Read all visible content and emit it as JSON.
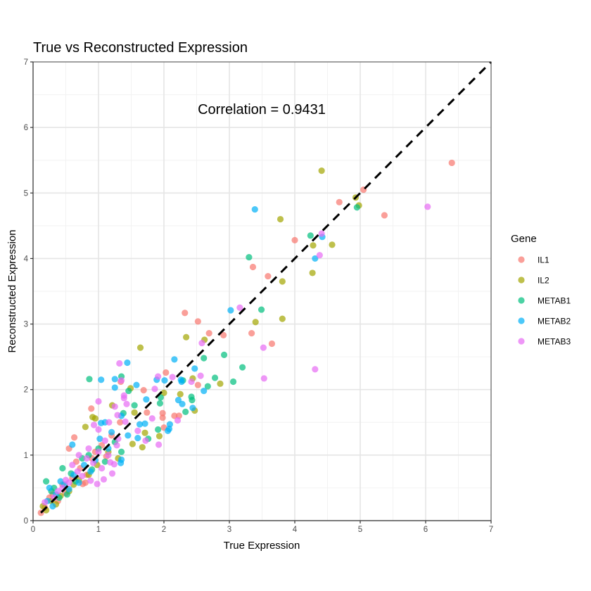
{
  "chart_data": {
    "type": "scatter",
    "title": "True vs Reconstructed Expression",
    "xlabel": "True Expression",
    "ylabel": "Reconstructed Expression",
    "xlim": [
      0,
      7
    ],
    "ylim": [
      0,
      7
    ],
    "x_ticks": [
      "0",
      "1",
      "2",
      "3",
      "4",
      "5",
      "6",
      "7"
    ],
    "y_ticks": [
      "0",
      "1",
      "2",
      "3",
      "4",
      "5",
      "6",
      "7"
    ],
    "grid": true,
    "annotation": "Correlation = 0.9431",
    "reference_line": {
      "type": "identity",
      "style": "dashed",
      "color": "#000000"
    },
    "legend": {
      "title": "Gene",
      "placement": "right"
    },
    "series": [
      {
        "name": "IL1",
        "color": "#F8766D",
        "points": [
          [
            6.4,
            5.46
          ],
          [
            5.05,
            5.05
          ],
          [
            4.68,
            4.86
          ],
          [
            5.37,
            4.66
          ],
          [
            4.0,
            4.28
          ],
          [
            3.36,
            3.87
          ],
          [
            3.59,
            3.73
          ],
          [
            2.32,
            3.17
          ],
          [
            2.52,
            3.04
          ],
          [
            2.69,
            2.86
          ],
          [
            2.91,
            2.83
          ],
          [
            3.34,
            2.86
          ],
          [
            3.65,
            2.7
          ],
          [
            2.03,
            2.26
          ],
          [
            2.52,
            2.07
          ],
          [
            1.34,
            2.12
          ],
          [
            1.69,
            1.99
          ],
          [
            0.89,
            1.71
          ],
          [
            1.74,
            1.65
          ],
          [
            1.98,
            1.64
          ],
          [
            1.98,
            1.57
          ],
          [
            2.16,
            1.6
          ],
          [
            2.23,
            1.6
          ],
          [
            2.0,
            1.42
          ],
          [
            1.33,
            1.5
          ],
          [
            0.63,
            1.27
          ],
          [
            0.55,
            1.1
          ],
          [
            0.76,
            0.56
          ],
          [
            0.9,
            0.95
          ],
          [
            0.72,
            0.8
          ],
          [
            0.45,
            0.55
          ],
          [
            0.3,
            0.4
          ],
          [
            0.18,
            0.2
          ],
          [
            0.12,
            0.12
          ],
          [
            0.6,
            0.65
          ],
          [
            1.05,
            1.15
          ],
          [
            0.82,
            0.7
          ],
          [
            0.38,
            0.3
          ],
          [
            1.2,
            1.3
          ],
          [
            0.95,
            1.05
          ],
          [
            0.5,
            0.42
          ],
          [
            0.66,
            0.9
          ],
          [
            0.25,
            0.35
          ],
          [
            0.8,
            0.58
          ],
          [
            1.12,
            0.98
          ]
        ]
      },
      {
        "name": "IL2",
        "color": "#A3A500",
        "points": [
          [
            4.41,
            5.34
          ],
          [
            4.93,
            4.93
          ],
          [
            4.98,
            4.81
          ],
          [
            3.78,
            4.6
          ],
          [
            4.28,
            4.2
          ],
          [
            4.57,
            4.21
          ],
          [
            3.81,
            3.65
          ],
          [
            4.27,
            3.78
          ],
          [
            3.4,
            3.03
          ],
          [
            3.81,
            3.08
          ],
          [
            2.34,
            2.8
          ],
          [
            2.62,
            2.76
          ],
          [
            2.86,
            2.09
          ],
          [
            1.64,
            2.64
          ],
          [
            2.44,
            2.17
          ],
          [
            2.0,
            1.95
          ],
          [
            2.25,
            1.93
          ],
          [
            1.49,
            2.02
          ],
          [
            1.21,
            1.76
          ],
          [
            1.55,
            1.65
          ],
          [
            2.47,
            1.68
          ],
          [
            0.91,
            1.58
          ],
          [
            0.95,
            1.56
          ],
          [
            0.8,
            1.43
          ],
          [
            1.93,
            1.29
          ],
          [
            1.71,
            1.34
          ],
          [
            1.67,
            1.12
          ],
          [
            1.52,
            1.17
          ],
          [
            0.2,
            0.16
          ],
          [
            0.15,
            0.22
          ],
          [
            0.35,
            0.25
          ],
          [
            0.55,
            0.45
          ],
          [
            0.7,
            0.62
          ],
          [
            0.98,
            0.85
          ],
          [
            1.15,
            1.05
          ],
          [
            0.42,
            0.38
          ],
          [
            0.85,
            0.7
          ],
          [
            0.28,
            0.3
          ],
          [
            0.62,
            0.55
          ],
          [
            1.3,
            0.95
          ]
        ]
      },
      {
        "name": "METAB1",
        "color": "#00BF7D",
        "points": [
          [
            4.95,
            4.78
          ],
          [
            4.24,
            4.35
          ],
          [
            3.3,
            4.02
          ],
          [
            3.49,
            3.22
          ],
          [
            2.61,
            2.48
          ],
          [
            2.92,
            2.53
          ],
          [
            3.2,
            2.34
          ],
          [
            3.06,
            2.12
          ],
          [
            2.29,
            2.14
          ],
          [
            2.78,
            2.18
          ],
          [
            2.67,
            2.05
          ],
          [
            1.35,
            2.2
          ],
          [
            0.86,
            2.16
          ],
          [
            1.46,
            1.98
          ],
          [
            1.95,
            1.88
          ],
          [
            1.94,
            1.79
          ],
          [
            2.42,
            1.89
          ],
          [
            2.43,
            1.84
          ],
          [
            1.55,
            1.76
          ],
          [
            2.33,
            1.66
          ],
          [
            1.38,
            1.64
          ],
          [
            1.91,
            1.39
          ],
          [
            1.76,
            1.25
          ],
          [
            0.2,
            0.6
          ],
          [
            0.45,
            0.8
          ],
          [
            0.32,
            0.5
          ],
          [
            0.58,
            0.72
          ],
          [
            0.75,
            0.95
          ],
          [
            1.0,
            1.1
          ],
          [
            0.9,
            0.78
          ],
          [
            1.25,
            1.2
          ],
          [
            0.4,
            0.35
          ],
          [
            0.65,
            0.6
          ],
          [
            1.1,
            0.9
          ],
          [
            0.28,
            0.45
          ],
          [
            0.52,
            0.4
          ],
          [
            0.85,
            1.0
          ],
          [
            1.35,
            1.05
          ]
        ]
      },
      {
        "name": "METAB2",
        "color": "#00B0F6",
        "points": [
          [
            3.39,
            4.75
          ],
          [
            4.42,
            4.33
          ],
          [
            4.31,
            4.0
          ],
          [
            3.02,
            3.21
          ],
          [
            2.16,
            2.46
          ],
          [
            2.47,
            2.32
          ],
          [
            1.44,
            2.41
          ],
          [
            1.89,
            2.15
          ],
          [
            2.01,
            2.14
          ],
          [
            2.27,
            2.12
          ],
          [
            2.26,
            2.15
          ],
          [
            2.61,
            1.98
          ],
          [
            1.04,
            2.15
          ],
          [
            1.25,
            2.16
          ],
          [
            1.25,
            2.03
          ],
          [
            1.58,
            2.07
          ],
          [
            1.73,
            1.85
          ],
          [
            2.22,
            1.84
          ],
          [
            2.28,
            1.78
          ],
          [
            2.44,
            1.72
          ],
          [
            1.35,
            1.6
          ],
          [
            1.04,
            1.49
          ],
          [
            1.1,
            1.5
          ],
          [
            1.63,
            1.47
          ],
          [
            1.71,
            1.48
          ],
          [
            2.09,
            1.47
          ],
          [
            2.08,
            1.4
          ],
          [
            2.06,
            1.37
          ],
          [
            1.6,
            1.26
          ],
          [
            0.6,
            1.16
          ],
          [
            1.34,
            0.88
          ],
          [
            1.35,
            0.93
          ],
          [
            0.22,
            0.3
          ],
          [
            0.35,
            0.4
          ],
          [
            0.48,
            0.55
          ],
          [
            0.62,
            0.7
          ],
          [
            0.78,
            0.85
          ],
          [
            0.95,
            0.92
          ],
          [
            1.15,
            1.1
          ],
          [
            0.3,
            0.22
          ],
          [
            0.55,
            0.48
          ],
          [
            0.88,
            0.75
          ],
          [
            1.2,
            1.35
          ],
          [
            0.42,
            0.6
          ],
          [
            0.7,
            0.58
          ],
          [
            1.02,
            1.25
          ],
          [
            0.25,
            0.5
          ],
          [
            1.45,
            1.3
          ]
        ]
      },
      {
        "name": "METAB3",
        "color": "#E76BF3",
        "points": [
          [
            6.03,
            4.79
          ],
          [
            4.41,
            4.38
          ],
          [
            4.38,
            4.05
          ],
          [
            3.16,
            3.25
          ],
          [
            2.58,
            2.71
          ],
          [
            3.52,
            2.64
          ],
          [
            4.31,
            2.31
          ],
          [
            3.53,
            2.17
          ],
          [
            1.32,
            2.4
          ],
          [
            1.91,
            2.2
          ],
          [
            2.13,
            2.19
          ],
          [
            2.42,
            2.12
          ],
          [
            2.56,
            2.21
          ],
          [
            1.35,
            2.14
          ],
          [
            1.86,
            2.01
          ],
          [
            1.39,
            1.91
          ],
          [
            1.39,
            1.87
          ],
          [
            1.0,
            1.82
          ],
          [
            1.43,
            1.78
          ],
          [
            1.25,
            1.74
          ],
          [
            1.29,
            1.61
          ],
          [
            1.16,
            1.5
          ],
          [
            1.41,
            1.51
          ],
          [
            0.93,
            1.46
          ],
          [
            1.0,
            1.39
          ],
          [
            1.82,
            1.56
          ],
          [
            2.21,
            1.53
          ],
          [
            1.6,
            1.37
          ],
          [
            1.72,
            1.22
          ],
          [
            1.92,
            1.16
          ],
          [
            1.24,
            0.86
          ],
          [
            1.21,
            0.72
          ],
          [
            1.08,
            0.63
          ],
          [
            0.98,
            0.56
          ],
          [
            0.88,
            0.61
          ],
          [
            1.18,
            0.89
          ],
          [
            0.18,
            0.28
          ],
          [
            0.32,
            0.35
          ],
          [
            0.5,
            0.62
          ],
          [
            0.68,
            0.75
          ],
          [
            0.82,
            0.95
          ],
          [
            1.0,
            1.05
          ],
          [
            1.1,
            1.22
          ],
          [
            0.75,
            0.68
          ],
          [
            0.92,
            0.88
          ],
          [
            1.28,
            1.15
          ],
          [
            0.45,
            0.5
          ],
          [
            0.6,
            0.85
          ],
          [
            1.05,
            0.8
          ],
          [
            0.38,
            0.45
          ],
          [
            0.85,
            1.1
          ],
          [
            1.15,
            1.0
          ],
          [
            0.55,
            0.58
          ],
          [
            0.7,
            1.0
          ],
          [
            1.3,
            1.25
          ]
        ]
      }
    ]
  }
}
